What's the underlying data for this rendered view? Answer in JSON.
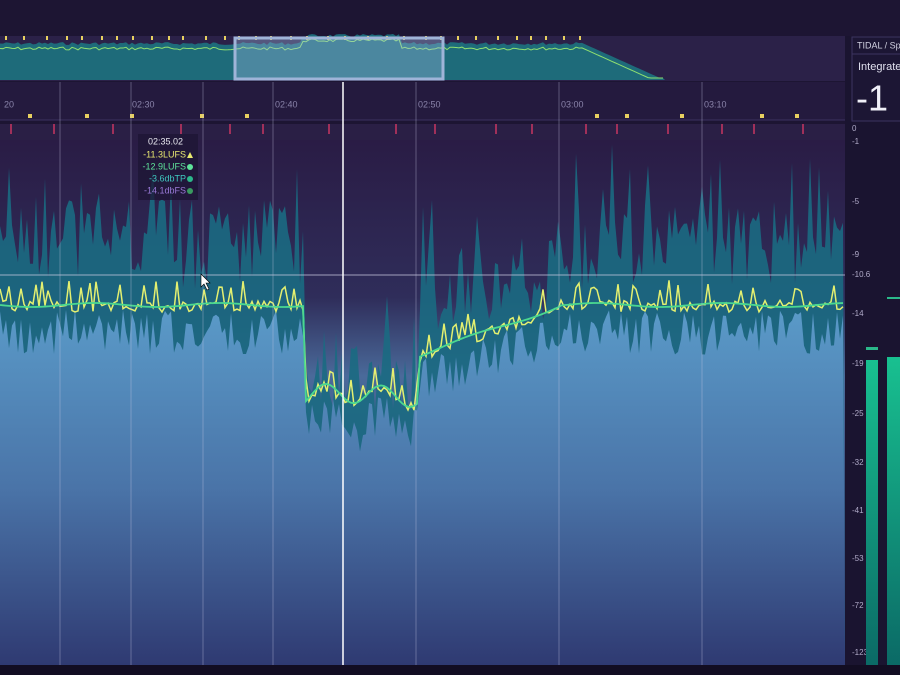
{
  "timeline": {
    "labels": [
      "20",
      "02:30",
      "02:40",
      "02:50",
      "03:00",
      "03:10"
    ]
  },
  "tooltip": {
    "time": "02:35.02",
    "lines": [
      "-11.3LUFS",
      "-12.9LUFS",
      "-3.6dbTP",
      "-14.1dbFS"
    ]
  },
  "scale": {
    "labels": [
      "0",
      "-1",
      "-5",
      "-9",
      "-10.6",
      "-14",
      "-19",
      "-25",
      "-32",
      "-41",
      "-53",
      "-72",
      "-123"
    ]
  },
  "panel": {
    "service": "TIDAL / Spo",
    "label": "Integrate",
    "value": "-1"
  }
}
